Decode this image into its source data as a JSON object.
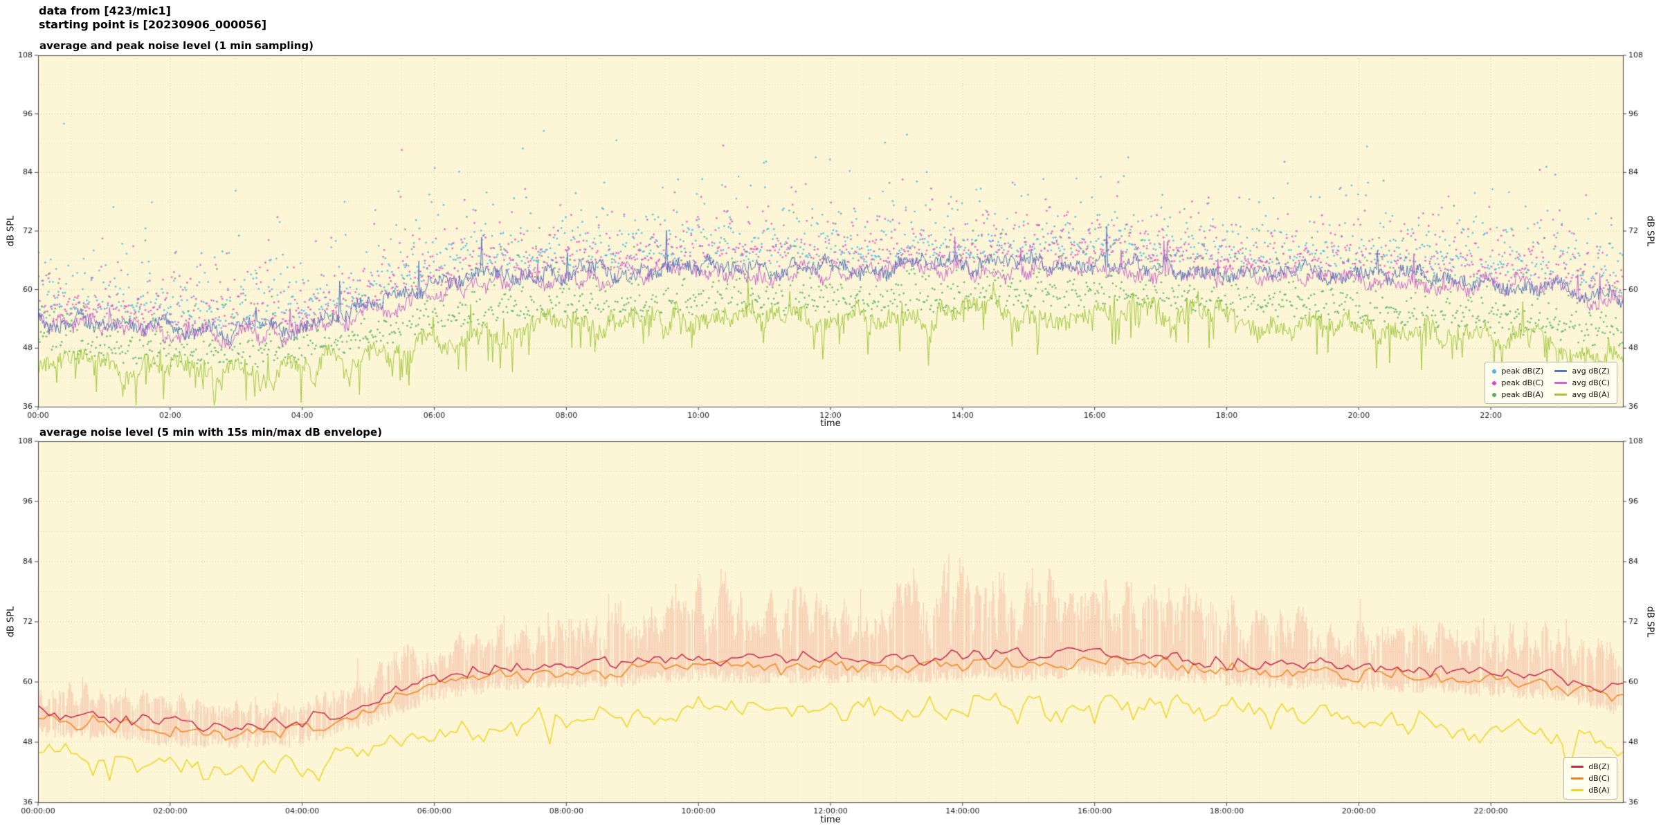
{
  "header": {
    "line1": "data from [423/mic1]",
    "line2": "starting point is [20230906_000056]"
  },
  "colors": {
    "figure_bg": "#ffffff",
    "plot_bg": "#fcf6d6",
    "grid": "#b4ac92",
    "frame": "#444444",
    "tick_text": "#1a1a1a"
  },
  "chart_data": [
    {
      "type": "line",
      "title": "average and peak noise level (1 min sampling)",
      "xlabel": "time",
      "ylabel": "dB SPL",
      "ylabel_right": "dB SPL",
      "xlim_hours": [
        0,
        24
      ],
      "ylim": [
        36,
        108
      ],
      "yticks": [
        36,
        48,
        60,
        72,
        84,
        96,
        108
      ],
      "xtick_hours": [
        0,
        2,
        4,
        6,
        8,
        10,
        12,
        14,
        16,
        18,
        20,
        22
      ],
      "xtick_labels": [
        "00:00",
        "02:00",
        "04:00",
        "06:00",
        "08:00",
        "10:00",
        "12:00",
        "14:00",
        "16:00",
        "18:00",
        "20:00",
        "22:00"
      ],
      "sample_minutes": 1,
      "legend_position": "lower right",
      "grid": true,
      "series": [
        {
          "name": "peak dB(Z)",
          "style": "scatter",
          "color": "#44b8e8",
          "anchors": [
            54,
            53,
            52,
            51.5,
            52,
            56,
            61,
            63,
            63.5,
            64,
            65,
            64.5,
            64.5,
            64.5,
            65,
            65,
            66,
            65,
            64,
            63.5,
            63,
            62.5,
            62,
            61,
            58
          ],
          "offset_db": 1.5,
          "tail_db": 4.2
        },
        {
          "name": "peak dB(C)",
          "style": "scatter",
          "color": "#e04cc8",
          "anchors": [
            53,
            52,
            51,
            50.5,
            51,
            55,
            60,
            62,
            62.5,
            63,
            64,
            63.5,
            63.5,
            63.5,
            64,
            64,
            65,
            64,
            63,
            62.5,
            62,
            61.5,
            61,
            60,
            57
          ],
          "offset_db": 1.5,
          "tail_db": 4.0
        },
        {
          "name": "peak dB(A)",
          "style": "scatter",
          "color": "#55b060",
          "anchors": [
            46,
            44,
            43.5,
            43,
            43,
            47,
            50,
            52,
            53,
            53,
            54,
            54,
            54,
            54,
            55,
            55,
            56,
            55,
            54,
            53,
            52,
            51,
            50,
            49,
            46
          ],
          "offset_db": 2.0,
          "tail_db": 3.6
        },
        {
          "name": "avg dB(Z)",
          "style": "line",
          "color": "#5577bb",
          "anchors": [
            54,
            53,
            52,
            51.5,
            52,
            56,
            61,
            63,
            63.5,
            64,
            65,
            64.5,
            64.5,
            64.5,
            65,
            65,
            66,
            65,
            64,
            63.5,
            63,
            62.5,
            62,
            61,
            58
          ],
          "jitter_db": 2.2,
          "spike_chance": 0.012,
          "spike_db": 8
        },
        {
          "name": "avg dB(C)",
          "style": "line",
          "color": "#c668cc",
          "anchors": [
            53,
            52,
            51,
            50.5,
            51,
            55,
            60,
            62,
            62.5,
            63,
            64,
            63.5,
            63.5,
            63.5,
            64,
            64,
            65,
            64,
            63,
            62.5,
            62,
            61.5,
            61,
            60,
            57
          ],
          "jitter_db": 2.2,
          "spike_chance": 0.012,
          "spike_db": 7
        },
        {
          "name": "avg dB(A)",
          "style": "line",
          "color": "#a2c83c",
          "anchors": [
            46,
            44,
            43.5,
            43,
            43,
            47,
            50,
            52,
            53,
            53,
            54,
            54,
            54,
            54,
            55,
            55,
            56,
            55,
            54,
            53,
            52,
            51,
            50,
            49,
            46
          ],
          "jitter_db": 3.0,
          "dip_chance": 0.1,
          "dip_db": 7,
          "spike_chance": 0.02,
          "spike_db": 7
        }
      ]
    },
    {
      "type": "line",
      "title": "average noise level (5 min with 15s min/max dB envelope)",
      "xlabel": "time",
      "ylabel": "dB SPL",
      "ylabel_right": "dB SPL",
      "xlim_hours": [
        0,
        24
      ],
      "ylim": [
        36,
        108
      ],
      "yticks": [
        36,
        48,
        60,
        72,
        84,
        96,
        108
      ],
      "xtick_hours": [
        0,
        2,
        4,
        6,
        8,
        10,
        12,
        14,
        16,
        18,
        20,
        22
      ],
      "xtick_labels": [
        "00:00:00",
        "02:00:00",
        "04:00:00",
        "06:00:00",
        "08:00:00",
        "10:00:00",
        "12:00:00",
        "14:00:00",
        "16:00:00",
        "18:00:00",
        "20:00:00",
        "22:00:00"
      ],
      "sample_minutes": 5,
      "legend_position": "lower right",
      "grid": true,
      "series": [
        {
          "name": "15s min/max envelope",
          "style": "envelope",
          "color": "rgba(240,125,115,0.34)",
          "anchors": [
            54,
            53,
            52,
            51.5,
            52,
            56,
            61,
            63,
            63.5,
            64,
            65,
            64.5,
            64.5,
            64.5,
            65,
            65,
            66,
            65,
            64,
            63.5,
            63,
            62.5,
            62,
            61,
            58
          ],
          "top_extra": [
            5,
            5,
            4.5,
            4.5,
            5,
            6,
            7,
            8,
            8,
            9,
            12,
            11,
            11,
            12,
            15,
            15,
            15,
            12,
            10,
            9,
            8,
            8,
            8,
            9,
            7
          ],
          "bottom_extra": 4.5,
          "in_legend": false
        },
        {
          "name": "dB(Z)",
          "style": "line",
          "color": "#c22a50",
          "anchors": [
            54,
            53,
            52,
            51.5,
            52,
            56,
            61,
            63,
            63.5,
            64,
            65,
            64.5,
            64.5,
            64.5,
            65,
            65,
            66,
            65,
            64,
            63.5,
            63,
            62.5,
            62,
            61,
            58
          ],
          "jitter_db": 1.4
        },
        {
          "name": "dB(C)",
          "style": "line",
          "color": "#f08820",
          "anchors": [
            52.5,
            51.5,
            50.5,
            50,
            50.5,
            54.5,
            59.5,
            61.5,
            62,
            62.5,
            63.5,
            63,
            63,
            63,
            63.5,
            63.5,
            64.5,
            63.5,
            62.5,
            62,
            61.5,
            61,
            60.5,
            59.5,
            56.5
          ],
          "jitter_db": 1.4
        },
        {
          "name": "dB(A)",
          "style": "line",
          "color": "#f0d520",
          "anchors": [
            46,
            44,
            43.5,
            43,
            43,
            47,
            50,
            52,
            53,
            53,
            54,
            54,
            54,
            54,
            55,
            55,
            56,
            55,
            54,
            53,
            52,
            51,
            50,
            49,
            46
          ],
          "jitter_db": 2.4,
          "dip_chance": 0.06,
          "dip_db": 5
        }
      ]
    }
  ]
}
